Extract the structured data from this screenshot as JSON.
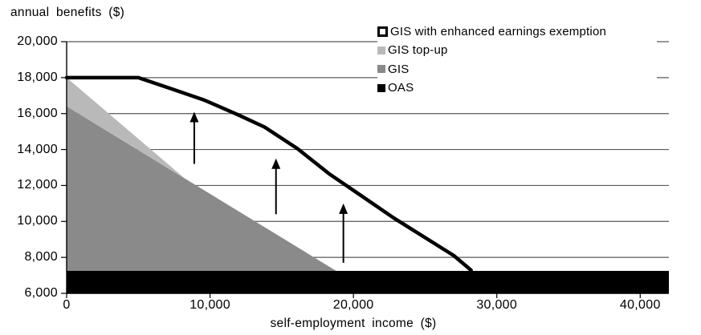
{
  "y_axis_title": "annual benefits ($)",
  "x_axis_title": "self-employment income ($)",
  "legend": {
    "items": [
      {
        "label": "GIS with enhanced earnings exemption",
        "swatch": "hollow-square-marker",
        "color": "#000000"
      },
      {
        "label": "GIS top-up",
        "swatch": "filled-square",
        "color": "#b9b9b9"
      },
      {
        "label": "GIS",
        "swatch": "filled-square",
        "color": "#8a8a8a"
      },
      {
        "label": "OAS",
        "swatch": "filled-square",
        "color": "#000000"
      }
    ],
    "position": "top-right",
    "background": "#ffffff"
  },
  "chart_data": {
    "type": "area",
    "title": "",
    "xlabel": "self-employment income ($)",
    "ylabel": "annual benefits ($)",
    "xlim": [
      0,
      42000
    ],
    "ylim": [
      6000,
      20000
    ],
    "x_ticks": [
      0,
      10000,
      20000,
      30000,
      40000
    ],
    "x_tick_labels": [
      "0",
      "10,000",
      "20,000",
      "30,000",
      "40,000"
    ],
    "y_ticks": [
      6000,
      8000,
      10000,
      12000,
      14000,
      16000,
      18000,
      20000
    ],
    "y_tick_labels": [
      "6,000",
      "8,000",
      "10,000",
      "12,000",
      "14,000",
      "16,000",
      "18,000",
      "20,000"
    ],
    "grid": "horizontal",
    "grid_color": "#595959",
    "legend_position": "top-right",
    "series": [
      {
        "name": "GIS top-up",
        "type": "area",
        "color": "#b9b9b9",
        "polygon": [
          [
            0,
            18000
          ],
          [
            8200,
            12420
          ],
          [
            0,
            16400
          ]
        ],
        "description": "wedge stacked above GIS, from 18,000 at 0 income, exhausted near 8,200"
      },
      {
        "name": "GIS",
        "type": "area",
        "color": "#8a8a8a",
        "polygon": [
          [
            0,
            16400
          ],
          [
            18800,
            7250
          ],
          [
            0,
            7250
          ]
        ],
        "description": "stacked above OAS, from 16,400 at 0 income, exhausted near 18,800"
      },
      {
        "name": "OAS",
        "type": "area",
        "color": "#000000",
        "polygon": [
          [
            0,
            7250
          ],
          [
            42000,
            7250
          ],
          [
            42000,
            6000
          ],
          [
            0,
            6000
          ]
        ],
        "description": "constant 7,250 across all incomes"
      },
      {
        "name": "GIS with enhanced earnings exemption",
        "type": "line",
        "color": "#000000",
        "stroke_width": 4.5,
        "points": [
          [
            0,
            18000
          ],
          [
            5000,
            18000
          ],
          [
            7400,
            17350
          ],
          [
            9600,
            16750
          ],
          [
            11900,
            15950
          ],
          [
            13800,
            15250
          ],
          [
            16100,
            14050
          ],
          [
            18300,
            12650
          ],
          [
            20600,
            11400
          ],
          [
            22800,
            10200
          ],
          [
            25000,
            9100
          ],
          [
            27000,
            8100
          ],
          [
            28200,
            7290
          ]
        ]
      }
    ],
    "annotations": {
      "up_arrows": [
        {
          "x": 8900,
          "y_from": 13200,
          "y_to": 16100
        },
        {
          "x": 14600,
          "y_from": 10400,
          "y_to": 13500
        },
        {
          "x": 19300,
          "y_from": 7700,
          "y_to": 11000
        }
      ]
    }
  }
}
